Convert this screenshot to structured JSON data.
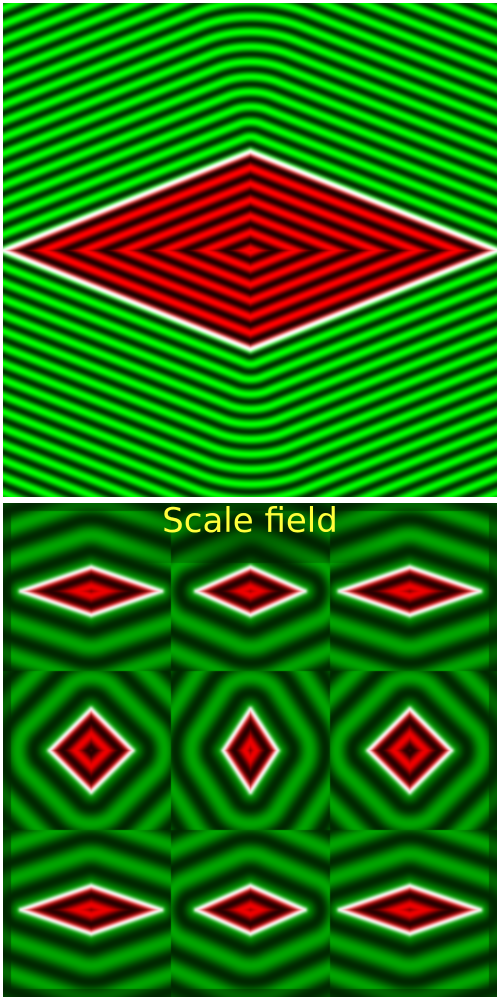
{
  "bottom_panel": {
    "title": "Scale field",
    "grid": {
      "rows": 3,
      "cols": 3
    },
    "cell_shapes": [
      [
        {
          "rx": 0.44,
          "ry": 0.15
        },
        {
          "rx": 0.34,
          "ry": 0.15
        },
        {
          "rx": 0.44,
          "ry": 0.15
        }
      ],
      [
        {
          "rx": 0.26,
          "ry": 0.26
        },
        {
          "rx": 0.17,
          "ry": 0.26
        },
        {
          "rx": 0.26,
          "ry": 0.26
        }
      ],
      [
        {
          "rx": 0.44,
          "ry": 0.15
        },
        {
          "rx": 0.34,
          "ry": 0.15
        },
        {
          "rx": 0.44,
          "ry": 0.15
        }
      ]
    ]
  },
  "top_panel": {
    "shape": {
      "rx": 0.5,
      "ry": 0.2
    }
  },
  "colors": {
    "outside_bright": "#00ff00",
    "outside_dark": "#003300",
    "inside_bright": "#ff0000",
    "inside_dark": "#220000",
    "edge": "#ffffff",
    "title": "#ffff3a",
    "background": "#ffffff"
  }
}
